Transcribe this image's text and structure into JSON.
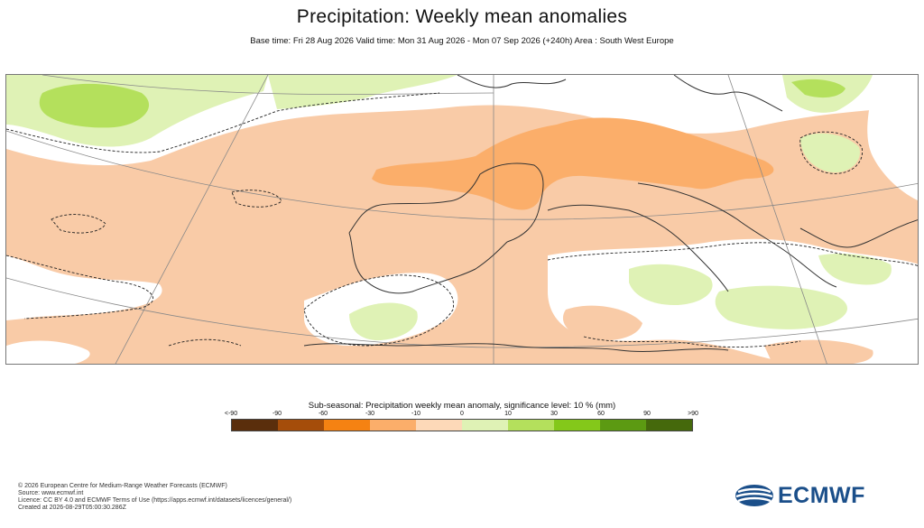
{
  "header": {
    "title": "Precipitation: Weekly mean anomalies",
    "subtitle": "Base time: Fri 28 Aug 2026 Valid time: Mon 31 Aug 2026 - Mon 07 Sep 2026 (+240h) Area : South West Europe"
  },
  "map": {
    "region": "South West Europe",
    "dominant_anomaly_color": "#f9cba7"
  },
  "legend": {
    "title": "Sub-seasonal: Precipitation weekly mean anomaly, significance level: 10 % (mm)",
    "ticks": [
      "<-90",
      "-90",
      "-60",
      "-30",
      "-10",
      "0",
      "10",
      "30",
      "60",
      "90",
      ">90"
    ],
    "colors": [
      "#5a2e0c",
      "#a54d0a",
      "#f58212",
      "#fbae6a",
      "#fdd9b8",
      "#dff2b5",
      "#b4e05c",
      "#84c81a",
      "#5c9a12",
      "#45690c"
    ]
  },
  "footer": {
    "line1": "© 2026 European Centre for Medium-Range Weather Forecasts (ECMWF)",
    "line2": "Source: www.ecmwf.int",
    "line3": "Licence: CC BY 4.0 and ECMWF Terms of Use (https://apps.ecmwf.int/datasets/licences/general/)",
    "line4": "Created at 2026-08-29T05:00:30.286Z"
  },
  "logo": {
    "text": "ECMWF",
    "color": "#1b4f8a"
  }
}
